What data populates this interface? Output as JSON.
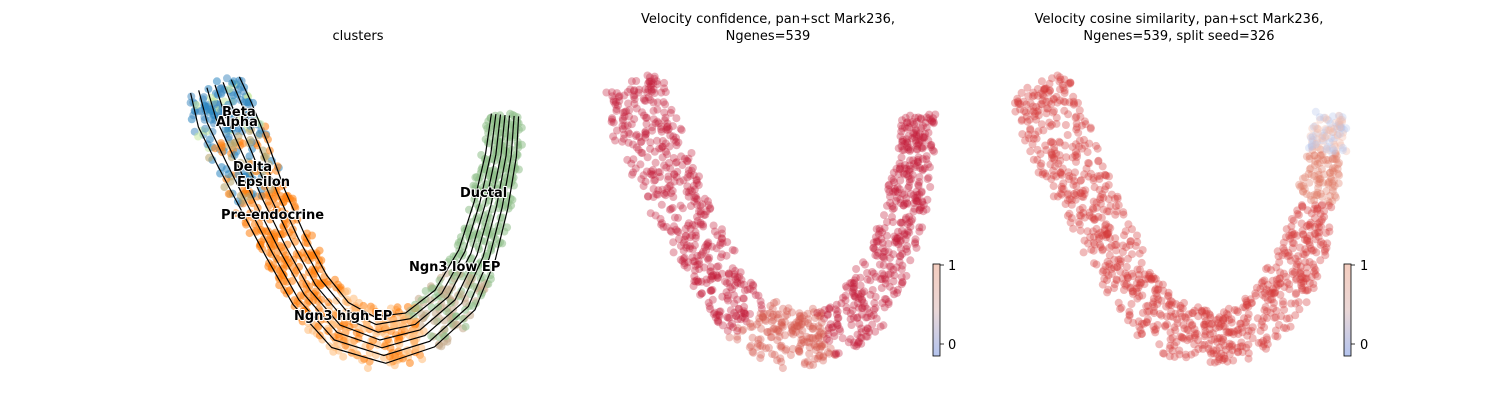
{
  "chart_data": [
    {
      "type": "scatter",
      "title": "clusters",
      "clusters": [
        {
          "name": "Beta",
          "color": "#c7e9a0"
        },
        {
          "name": "Alpha",
          "color": "#4a90c2"
        },
        {
          "name": "Delta",
          "color": "#2e86c1"
        },
        {
          "name": "Epsilon",
          "color": "#b5a26a"
        },
        {
          "name": "Pre-endocrine",
          "color": "#ff7f0e"
        },
        {
          "name": "Ngn3 high EP",
          "color": "#ffbb78"
        },
        {
          "name": "Ngn3 low EP",
          "color": "#c5a98a"
        },
        {
          "name": "Ductal",
          "color": "#8fbf8a"
        }
      ],
      "overlay": "velocity streamlines"
    },
    {
      "type": "scatter",
      "title_lines": [
        "Velocity confidence, pan+sct Mark236,",
        "Ngenes=539"
      ],
      "colorbar": {
        "ticks": [
          "1",
          "0"
        ],
        "range": [
          0,
          1
        ],
        "colormap": [
          "#b4c4ee",
          "#f4d9cf",
          "#e9a58f",
          "#c81d2c"
        ]
      },
      "point_color": "#c41e3a"
    },
    {
      "type": "scatter",
      "title_lines": [
        "Velocity cosine similarity, pan+sct Mark236,",
        "Ngenes=539, split seed=326"
      ],
      "colorbar": {
        "ticks": [
          "1",
          "0"
        ],
        "range": [
          0,
          1
        ],
        "colormap": [
          "#b4c4ee",
          "#f4d9cf",
          "#e9a58f",
          "#c81d2c"
        ]
      },
      "point_color": "#d43a3a"
    }
  ]
}
